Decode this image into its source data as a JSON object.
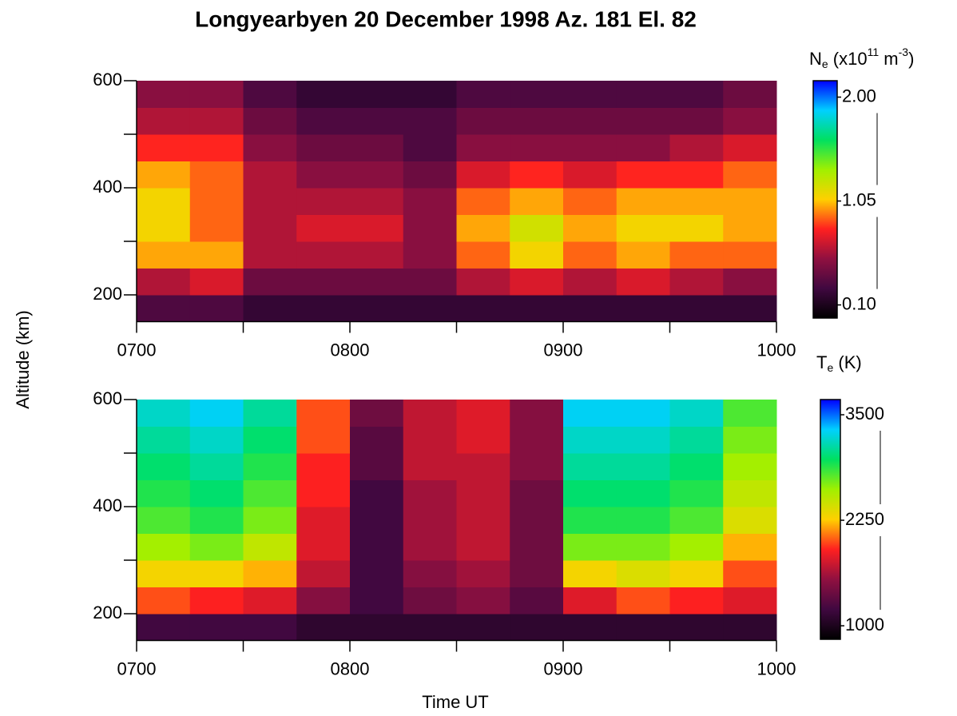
{
  "chart_data": [
    {
      "type": "heatmap",
      "title": "Longyearbyen 20 December 1998 Az. 181 El. 82",
      "ylabel": "Altitude (km)",
      "x": [
        7,
        7.25,
        7.5,
        7.75,
        8,
        8.25,
        8.5,
        8.75,
        9,
        9.25,
        9.5,
        9.75,
        10
      ],
      "y": [
        150,
        200,
        250,
        300,
        350,
        400,
        450,
        500,
        550,
        600
      ],
      "values": [
        [
          0.3,
          0.3,
          0.2,
          0.2,
          0.2,
          0.2,
          0.2,
          0.2,
          0.2,
          0.2,
          0.2,
          0.2
        ],
        [
          0.6,
          0.7,
          0.4,
          0.4,
          0.4,
          0.4,
          0.6,
          0.7,
          0.6,
          0.7,
          0.6,
          0.5
        ],
        [
          1.0,
          1.0,
          0.6,
          0.6,
          0.6,
          0.5,
          0.9,
          1.1,
          0.9,
          1.0,
          0.9,
          0.9
        ],
        [
          1.1,
          0.9,
          0.6,
          0.7,
          0.7,
          0.5,
          1.0,
          1.2,
          1.0,
          1.1,
          1.1,
          1.0
        ],
        [
          1.1,
          0.9,
          0.6,
          0.6,
          0.6,
          0.5,
          0.9,
          1.0,
          0.9,
          1.0,
          1.0,
          1.0
        ],
        [
          1.0,
          0.9,
          0.6,
          0.5,
          0.5,
          0.4,
          0.7,
          0.8,
          0.7,
          0.8,
          0.8,
          0.9
        ],
        [
          0.8,
          0.8,
          0.5,
          0.4,
          0.4,
          0.3,
          0.5,
          0.5,
          0.5,
          0.5,
          0.6,
          0.7
        ],
        [
          0.6,
          0.6,
          0.4,
          0.3,
          0.3,
          0.3,
          0.4,
          0.4,
          0.4,
          0.4,
          0.4,
          0.5
        ],
        [
          0.5,
          0.5,
          0.3,
          0.2,
          0.2,
          0.2,
          0.3,
          0.3,
          0.3,
          0.3,
          0.3,
          0.4
        ]
      ],
      "xlim": [
        7,
        10
      ],
      "xticks": [
        {
          "value": 7,
          "label": "0700"
        },
        {
          "value": 8,
          "label": "0800"
        },
        {
          "value": 9,
          "label": "0900"
        },
        {
          "value": 10,
          "label": "1000"
        }
      ],
      "xminor": [
        7.5,
        8.5,
        9.5
      ],
      "ylim": [
        150,
        600
      ],
      "yticks": [
        200,
        400,
        600
      ],
      "yminor": [
        300,
        500
      ],
      "colorbar": {
        "title": [
          "N",
          "e",
          " (x10",
          "11",
          " m",
          "-3",
          ")"
        ],
        "lim": [
          -0.02,
          2.15
        ],
        "ticks": [
          {
            "value": 0.1,
            "label": "0.10"
          },
          {
            "value": 1.05,
            "label": "1.05"
          },
          {
            "value": 2.0,
            "label": "2.00"
          }
        ]
      },
      "colormap": [
        "#000000",
        "#400840",
        "#901040",
        "#ff2020",
        "#ffd000",
        "#a0f000",
        "#00e060",
        "#00d0ff",
        "#0000ff"
      ]
    },
    {
      "type": "heatmap",
      "xlabel": "Time UT",
      "x": [
        7,
        7.25,
        7.5,
        7.75,
        8,
        8.25,
        8.5,
        8.75,
        9,
        9.25,
        9.5,
        9.75,
        10
      ],
      "y": [
        150,
        200,
        250,
        300,
        350,
        400,
        450,
        500,
        550,
        600
      ],
      "values": [
        [
          1200,
          1200,
          1200,
          1100,
          1100,
          1100,
          1100,
          1100,
          1100,
          1100,
          1100,
          1100
        ],
        [
          2000,
          1900,
          1800,
          1500,
          1200,
          1400,
          1500,
          1300,
          1800,
          2000,
          1900,
          1800
        ],
        [
          2300,
          2300,
          2200,
          1700,
          1200,
          1500,
          1600,
          1400,
          2300,
          2400,
          2300,
          2000
        ],
        [
          2600,
          2700,
          2500,
          1800,
          1200,
          1600,
          1700,
          1400,
          2700,
          2700,
          2600,
          2200
        ],
        [
          2800,
          2900,
          2700,
          1800,
          1200,
          1600,
          1700,
          1400,
          2900,
          2900,
          2800,
          2400
        ],
        [
          2900,
          3000,
          2800,
          1900,
          1200,
          1600,
          1700,
          1400,
          3000,
          3000,
          2900,
          2500
        ],
        [
          3000,
          3100,
          2900,
          1900,
          1300,
          1700,
          1700,
          1500,
          3100,
          3100,
          3000,
          2600
        ],
        [
          3100,
          3200,
          3000,
          2000,
          1300,
          1700,
          1800,
          1500,
          3200,
          3200,
          3100,
          2700
        ],
        [
          3200,
          3300,
          3100,
          2000,
          1400,
          1700,
          1800,
          1500,
          3300,
          3300,
          3200,
          2800
        ]
      ],
      "xlim": [
        7,
        10
      ],
      "xticks": [
        {
          "value": 7,
          "label": "0700"
        },
        {
          "value": 8,
          "label": "0800"
        },
        {
          "value": 9,
          "label": "0900"
        },
        {
          "value": 10,
          "label": "1000"
        }
      ],
      "xminor": [
        7.5,
        8.5,
        9.5
      ],
      "ylim": [
        150,
        600
      ],
      "yticks": [
        200,
        400,
        600
      ],
      "yminor": [
        300,
        500
      ],
      "colorbar": {
        "title": [
          "T",
          "e",
          " (K)"
        ],
        "lim": [
          840,
          3680
        ],
        "ticks": [
          1000,
          2250,
          3500
        ]
      },
      "colormap": [
        "#000000",
        "#400840",
        "#901040",
        "#ff2020",
        "#ffd000",
        "#a0f000",
        "#00e060",
        "#00d0ff",
        "#0000ff"
      ]
    }
  ]
}
